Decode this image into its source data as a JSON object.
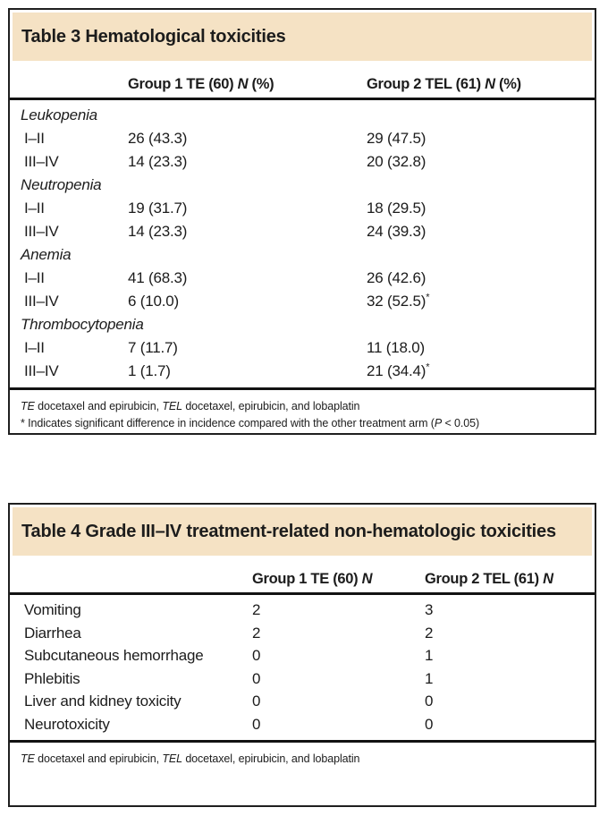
{
  "colors": {
    "band_background": "#f5e2c4",
    "border": "#1f1f1f",
    "rule_line": "#121212",
    "text": "#1c1c1c"
  },
  "table3": {
    "title": "Table 3 Hematological toxicities",
    "header": {
      "g1": {
        "pre": "Group 1 TE (60) ",
        "n": "N",
        "post": " (%)"
      },
      "g2": {
        "pre": "Group 2 TEL (61) ",
        "n": "N",
        "post": " (%)"
      }
    },
    "rows": [
      {
        "label": "Leukopenia"
      },
      {
        "label": "I–II",
        "g1": "26 (43.3)",
        "g2": "29 (47.5)"
      },
      {
        "label": "III–IV",
        "g1": "14 (23.3)",
        "g2": "20 (32.8)"
      },
      {
        "label": "Neutropenia"
      },
      {
        "label": "I–II",
        "g1": "19 (31.7)",
        "g2": "18 (29.5)"
      },
      {
        "label": "III–IV",
        "g1": "14 (23.3)",
        "g2": "24 (39.3)"
      },
      {
        "label": "Anemia"
      },
      {
        "label": "I–II",
        "g1": "41 (68.3)",
        "g2": "26 (42.6)"
      },
      {
        "label": "III–IV",
        "g1": "6 (10.0)",
        "g2": "32 (52.5)",
        "g2sup": "*"
      },
      {
        "label": "Thrombocytopenia"
      },
      {
        "label": "I–II",
        "g1": "7 (11.7)",
        "g2": "11 (18.0)"
      },
      {
        "label": "III–IV",
        "g1": "1 (1.7)",
        "g2": "21 (34.4)",
        "g2sup": "*"
      }
    ],
    "footnotes": {
      "abbrev": {
        "te": "TE",
        "mid": " docetaxel and epirubicin, ",
        "tel": "TEL",
        "end": " docetaxel, epirubicin, and lobaplatin"
      },
      "sig": {
        "pre": "* Indicates significant difference in incidence compared with the other treatment arm (",
        "p": "P",
        "post": " < 0.05)"
      }
    }
  },
  "table4": {
    "title": "Table 4 Grade III–IV treatment-related non-hematologic toxicities",
    "header": {
      "g1": {
        "pre": "Group 1 TE (60) ",
        "n": "N"
      },
      "g2": {
        "pre": "Group 2 TEL (61) ",
        "n": "N"
      }
    },
    "rows": [
      {
        "label": "Vomiting",
        "g1": "2",
        "g2": "3"
      },
      {
        "label": "Diarrhea",
        "g1": "2",
        "g2": "2"
      },
      {
        "label": "Subcutaneous hemorrhage",
        "g1": "0",
        "g2": "1"
      },
      {
        "label": "Phlebitis",
        "g1": "0",
        "g2": "1"
      },
      {
        "label": "Liver and kidney toxicity",
        "g1": "0",
        "g2": "0"
      },
      {
        "label": "Neurotoxicity",
        "g1": "0",
        "g2": "0"
      }
    ],
    "footnotes": {
      "abbrev": {
        "te": "TE",
        "mid": " docetaxel and epirubicin, ",
        "tel": "TEL",
        "end": " docetaxel, epirubicin, and lobaplatin"
      }
    }
  }
}
